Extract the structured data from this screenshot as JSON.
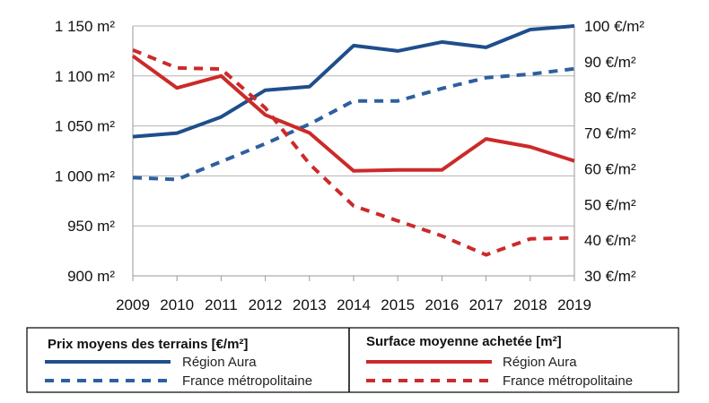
{
  "chart_data": {
    "type": "line",
    "x": [
      2009,
      2010,
      2011,
      2012,
      2013,
      2014,
      2015,
      2016,
      2017,
      2018,
      2019
    ],
    "x_tick_labels": [
      "2009",
      "2010",
      "2011",
      "2012",
      "2013",
      "2014",
      "2015",
      "2016",
      "2017",
      "2018",
      "2019"
    ],
    "left_axis": {
      "range": [
        900,
        1150
      ],
      "tick_values": [
        900,
        950,
        1000,
        1050,
        1100,
        1150
      ],
      "tick_labels": [
        "900 m²",
        "950 m²",
        "1 000 m²",
        "1 050 m²",
        "1 100 m²",
        "1 150 m²"
      ]
    },
    "right_axis": {
      "range": [
        30,
        100
      ],
      "tick_values": [
        30,
        40,
        50,
        60,
        70,
        80,
        90,
        100
      ],
      "tick_labels": [
        "30 €/m²",
        "40 €/m²",
        "50 €/m²",
        "60 €/m²",
        "70 €/m²",
        "80 €/m²",
        "90 €/m²",
        "100 €/m²"
      ]
    },
    "series": [
      {
        "group": "price",
        "name": "Région Aura",
        "axis": "right",
        "color": "#1f4e8c",
        "dashed": false,
        "values": [
          69,
          70,
          74.5,
          82,
          83,
          94.5,
          93,
          95.5,
          94,
          99,
          100
        ]
      },
      {
        "group": "price",
        "name": "France métropolitaine",
        "axis": "right",
        "color": "#2e5f9e",
        "dashed": true,
        "values": [
          57.5,
          57,
          62,
          67,
          72.5,
          79,
          79,
          82.5,
          85.5,
          86.5,
          88
        ]
      },
      {
        "group": "surface",
        "name": "Région Aura",
        "axis": "left",
        "color": "#cc2a2a",
        "dashed": false,
        "values": [
          1120,
          1088,
          1100,
          1061,
          1043,
          1005,
          1006,
          1006,
          1037,
          1029,
          1015
        ]
      },
      {
        "group": "surface",
        "name": "France métropolitaine",
        "axis": "left",
        "color": "#cc2a2a",
        "dashed": true,
        "values": [
          1126,
          1108,
          1107,
          1068,
          1012,
          970,
          955,
          940,
          921,
          937,
          938
        ]
      }
    ],
    "grid": "horizontal",
    "legend_placement": "bottom",
    "legend": {
      "price_title": "Prix moyens des terrains [€/m²]",
      "surface_title": "Surface moyenne achetée [m²]"
    }
  }
}
